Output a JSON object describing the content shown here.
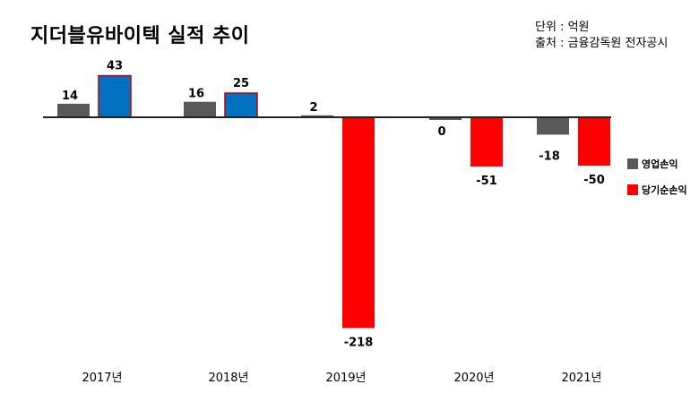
{
  "header": {
    "title": "지더블유바이텍 실적 추이",
    "unit": "단위 : 억원",
    "source": "출처 : 금융감독원 전자공시"
  },
  "legend": [
    {
      "label": "영업손익",
      "color": "#595959"
    },
    {
      "label": "당기순손익",
      "color": "#ff0000"
    }
  ],
  "chart_data": {
    "type": "bar",
    "title": "지더블유바이텍 실적 추이",
    "categories": [
      "2017년",
      "2018년",
      "2019년",
      "2020년",
      "2021년"
    ],
    "series": [
      {
        "name": "영업손익",
        "values": [
          14,
          16,
          2,
          0,
          -18
        ],
        "color": "#595959"
      },
      {
        "name": "당기순손익",
        "values": [
          43,
          25,
          -218,
          -51,
          -50
        ],
        "positive_color": "#0070c0",
        "negative_color": "#ff0000",
        "border_color": "#c00000"
      }
    ],
    "xlabel": "",
    "ylabel": "",
    "ylim": [
      -218,
      43
    ],
    "grid": false,
    "legend_position": "right"
  }
}
